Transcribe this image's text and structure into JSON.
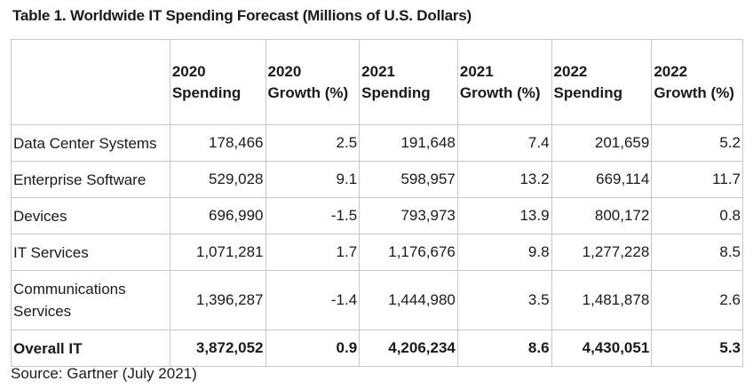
{
  "title": "Table 1. Worldwide IT Spending Forecast (Millions of U.S. Dollars)",
  "source": "Source: Gartner (July 2021)",
  "chart_data": {
    "type": "table",
    "title": "Table 1. Worldwide IT Spending Forecast (Millions of U.S. Dollars)",
    "columns": [
      "",
      "2020 Spending",
      "2020 Growth (%)",
      "2021 Spending",
      "2021 Growth (%)",
      "2022 Spending",
      "2022 Growth (%)"
    ],
    "rows": [
      [
        "Data Center Systems",
        "178,466",
        "2.5",
        "191,648",
        "7.4",
        "201,659",
        "5.2"
      ],
      [
        "Enterprise Software",
        "529,028",
        "9.1",
        "598,957",
        "13.2",
        "669,114",
        "11.7"
      ],
      [
        "Devices",
        "696,990",
        "-1.5",
        "793,973",
        "13.9",
        "800,172",
        "0.8"
      ],
      [
        "IT Services",
        "1,071,281",
        "1.7",
        "1,176,676",
        "9.8",
        "1,277,228",
        "8.5"
      ],
      [
        "Communications Services",
        "1,396,287",
        "-1.4",
        "1,444,980",
        "3.5",
        "1,481,878",
        "2.6"
      ],
      [
        "Overall IT",
        "3,872,052",
        "0.9",
        "4,206,234",
        "8.6",
        "4,430,051",
        "5.3"
      ]
    ]
  }
}
